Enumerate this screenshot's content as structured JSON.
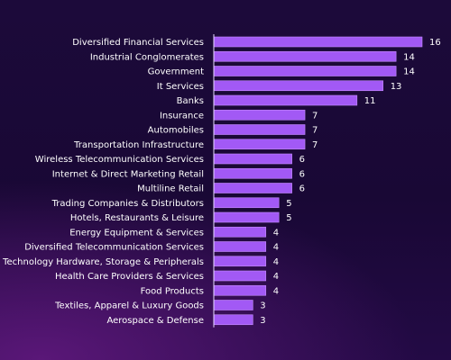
{
  "colors": {
    "bar": "#a259f5",
    "bar_edge": "#c58cff",
    "axis": "#e8dcff",
    "text": "#ffffff"
  },
  "chart_data": {
    "type": "bar",
    "orientation": "horizontal",
    "categories": [
      "Diversified Financial Services",
      "Industrial Conglomerates",
      "Government",
      "It Services",
      "Banks",
      "Insurance",
      "Automobiles",
      "Transportation Infrastructure",
      "Wireless Telecommunication Services",
      "Internet & Direct Marketing Retail",
      "Multiline Retail",
      "Trading Companies & Distributors",
      "Hotels, Restaurants & Leisure",
      "Energy Equipment & Services",
      "Diversified Telecommunication Services",
      "Technology Hardware, Storage & Peripherals",
      "Health Care Providers & Services",
      "Food Products",
      "Textiles, Apparel & Luxury Goods",
      "Aerospace & Defense"
    ],
    "values": [
      16,
      14,
      14,
      13,
      11,
      7,
      7,
      7,
      6,
      6,
      6,
      5,
      5,
      4,
      4,
      4,
      4,
      4,
      3,
      3
    ],
    "value_labels": [
      "16",
      "14",
      "14",
      "13",
      "11",
      "7",
      "7",
      "7",
      "6",
      "6",
      "6",
      "5",
      "5",
      "4",
      "4",
      "4",
      "4",
      "4",
      "3",
      "3"
    ],
    "title": "",
    "xlabel": "",
    "ylabel": "",
    "xlim": [
      0,
      16
    ],
    "grid": false,
    "legend": "none"
  }
}
